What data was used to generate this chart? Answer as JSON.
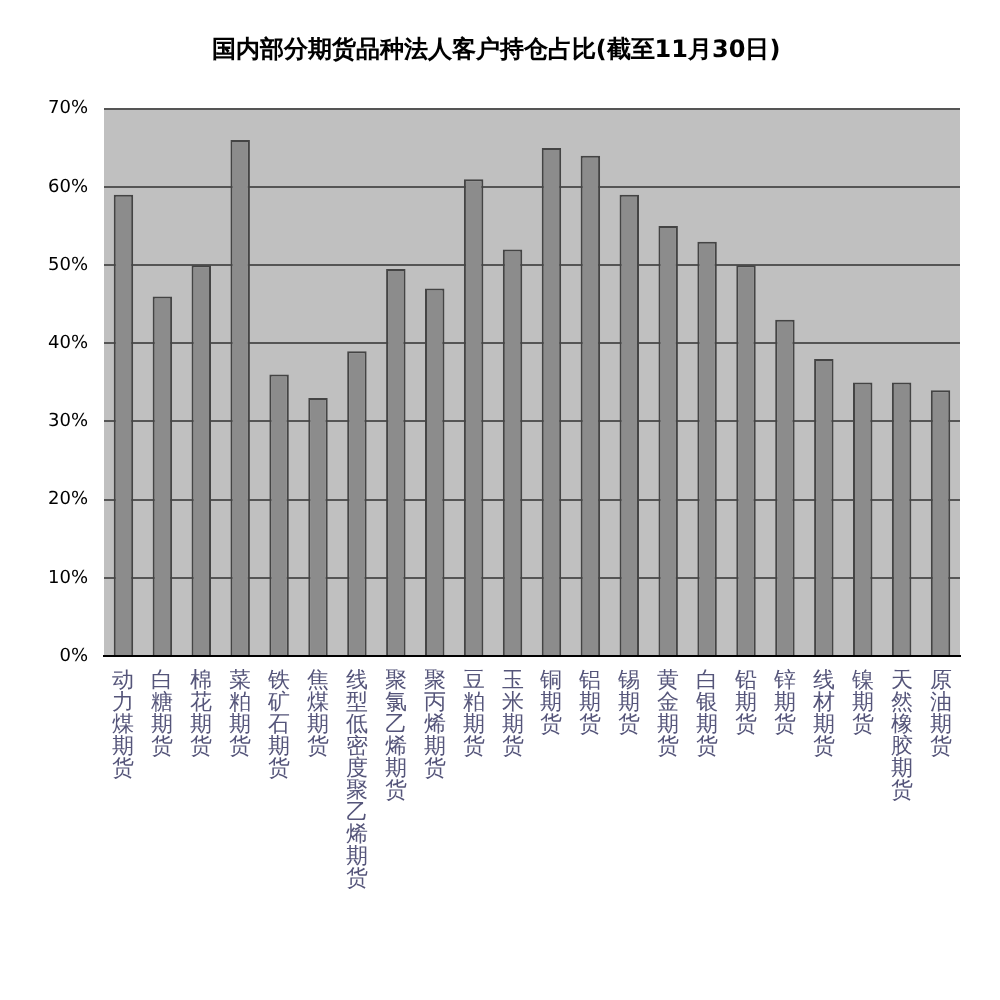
{
  "chart_data": {
    "type": "bar",
    "title": "国内部分期货品种法人客户持仓占比(截至11月30日)",
    "categories": [
      "动力煤期货",
      "白糖期货",
      "棉花期货",
      "菜粕期货",
      "铁矿石期货",
      "焦煤期货",
      "线型低密度聚乙烯期货",
      "聚氯乙烯期货",
      "聚丙烯期货",
      "豆粕期货",
      "玉米期货",
      "铜期货",
      "铝期货",
      "锡期货",
      "黄金期货",
      "白银期货",
      "铅期货",
      "锌期货",
      "线材期货",
      "镍期货",
      "天然橡胶期货",
      "原油期货"
    ],
    "values": [
      59,
      46,
      50,
      66,
      36,
      33,
      39,
      49.5,
      47,
      61,
      52,
      65,
      64,
      59,
      55,
      53,
      50,
      43,
      38,
      35,
      35,
      34
    ],
    "color": "#8c8c8c",
    "ylim": [
      0,
      70
    ],
    "yticks": [
      {
        "value": 0,
        "label": "0%"
      },
      {
        "value": 10,
        "label": "10%"
      },
      {
        "value": 20,
        "label": "20%"
      },
      {
        "value": 30,
        "label": "30%"
      },
      {
        "value": 40,
        "label": "40%"
      },
      {
        "value": 50,
        "label": "50%"
      },
      {
        "value": 60,
        "label": "60%"
      },
      {
        "value": 70,
        "label": "70%"
      }
    ],
    "grid": "y"
  }
}
